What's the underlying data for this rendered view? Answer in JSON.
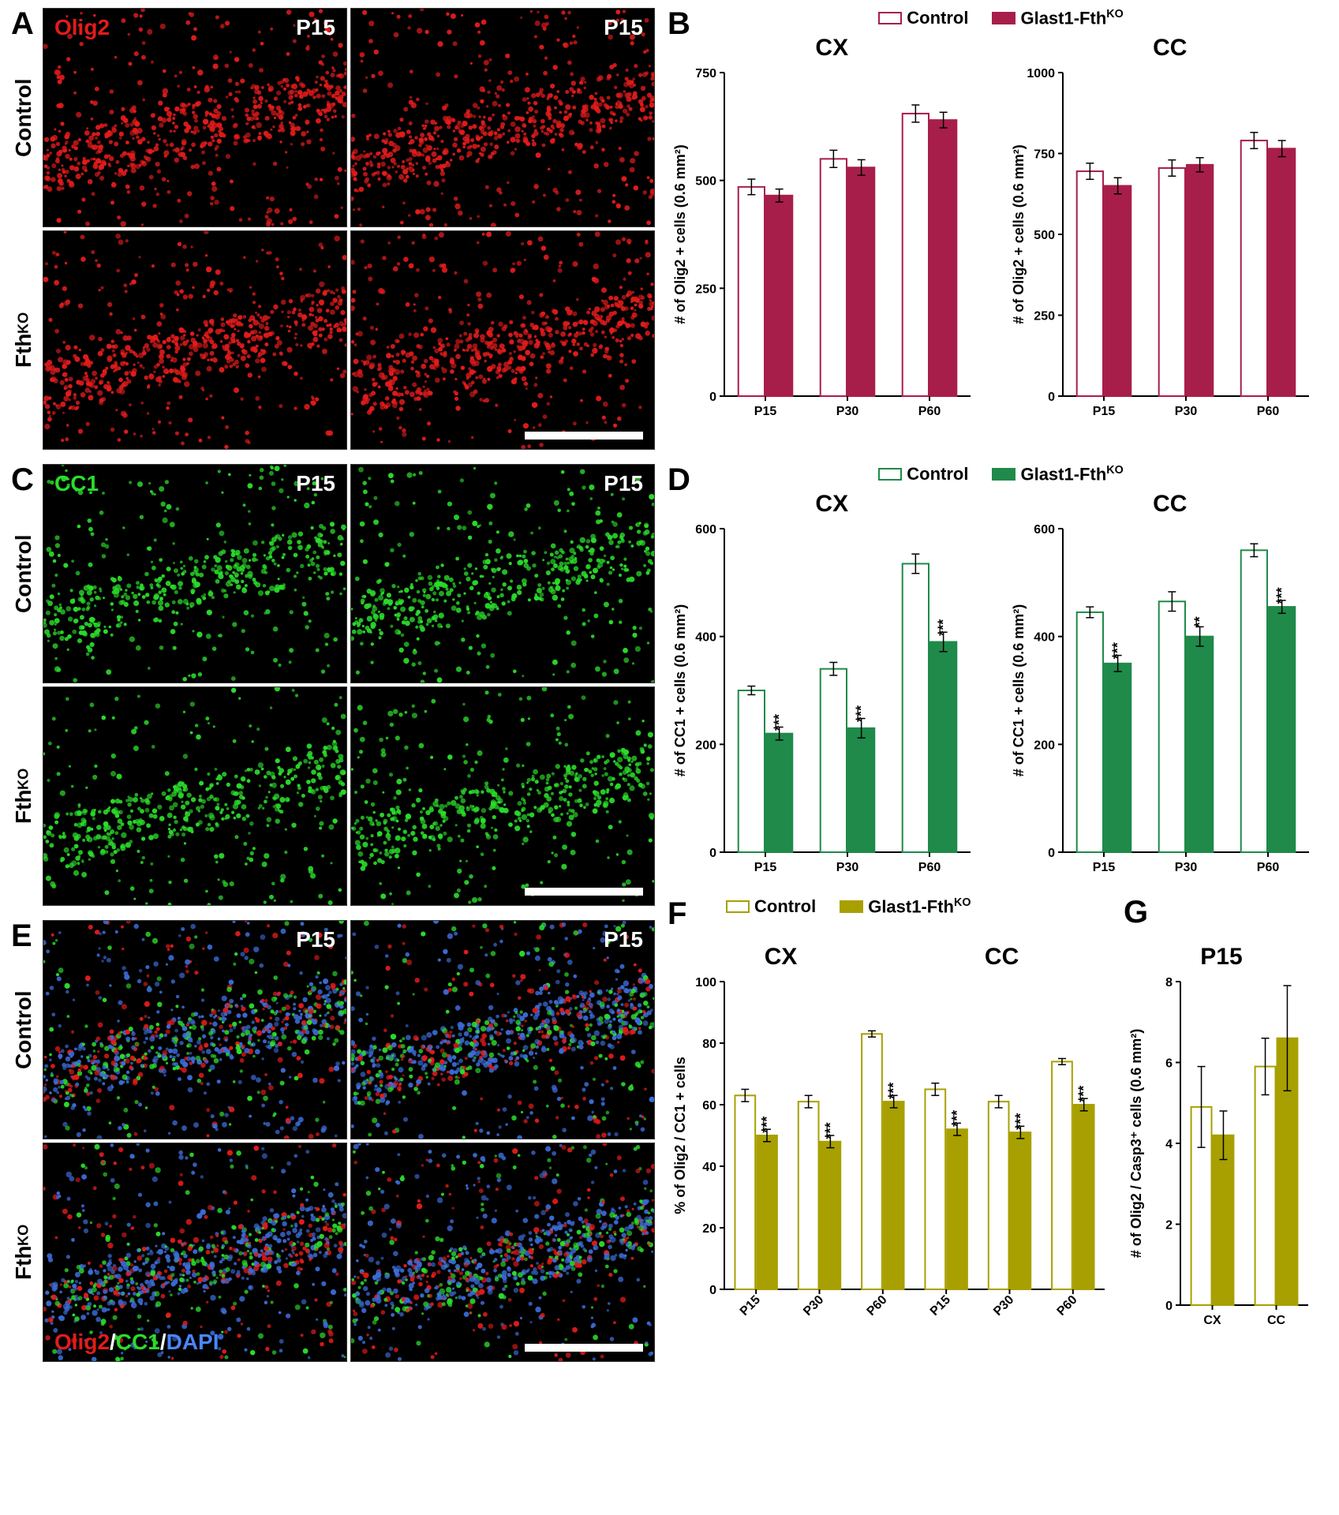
{
  "colors": {
    "olig2_red": "#e31b1b",
    "cc1_green": "#2bdc2b",
    "dapi_blue": "#2a5fff",
    "white": "#ffffff",
    "black": "#000000",
    "bar_control_outline_B": "#a81e4a",
    "bar_ko_fill_B": "#a81e4a",
    "bar_control_outline_D": "#1f8a4a",
    "bar_ko_fill_D": "#1f8a4a",
    "bar_control_outline_F": "#a8a000",
    "bar_ko_fill_F": "#a8a000",
    "axis": "#000000"
  },
  "timepoint_label": "P15",
  "row_labels": {
    "control": "Control",
    "ko": "Fth",
    "ko_sup": "KO"
  },
  "markers": {
    "A": {
      "text": "Olig2",
      "color": "#e31b1b"
    },
    "C": {
      "text": "CC1",
      "color": "#2bdc2b"
    },
    "E_parts": [
      {
        "text": "Olig2",
        "color": "#e31b1b"
      },
      {
        "text": "/",
        "color": "#ffffff"
      },
      {
        "text": "CC1",
        "color": "#2bdc2b"
      },
      {
        "text": "/",
        "color": "#ffffff"
      },
      {
        "text": "DAPI",
        "color": "#4a86ff"
      }
    ]
  },
  "legend_groups": {
    "B": {
      "control": "Control",
      "ko": "Glast1-Fth",
      "ko_sup": "KO"
    },
    "D": {
      "control": "Control",
      "ko": "Glast1-Fth",
      "ko_sup": "KO"
    },
    "F": {
      "control": "Control",
      "ko": "Glast1-Fth",
      "ko_sup": "KO"
    }
  },
  "panel_letters": {
    "A": "A",
    "B": "B",
    "C": "C",
    "D": "D",
    "E": "E",
    "F": "F",
    "G": "G"
  },
  "chart_common": {
    "x_categories_3": [
      "P15",
      "P30",
      "P60"
    ],
    "x_categories_6": [
      "P15",
      "P30",
      "P60",
      "P15",
      "P30",
      "P60"
    ],
    "x_categories_G": [
      "CX",
      "CC"
    ],
    "axis_fontsize": 18,
    "tick_fontsize": 16,
    "bar_group_gap": 0.35
  },
  "charts": {
    "B_CX": {
      "title": "CX",
      "ylabel": "# of Olig2 + cells (0.6 mm²)",
      "ylim": [
        0,
        750
      ],
      "ytick_step": 250,
      "control": [
        485,
        550,
        655
      ],
      "control_err": [
        18,
        20,
        20
      ],
      "ko": [
        465,
        530,
        640
      ],
      "ko_err": [
        15,
        18,
        18
      ],
      "sig": [
        "",
        "",
        ""
      ]
    },
    "B_CC": {
      "title": "CC",
      "ylabel": "# of Olig2 + cells (0.6 mm²)",
      "ylim": [
        0,
        1000
      ],
      "ytick_step": 250,
      "control": [
        695,
        705,
        790
      ],
      "control_err": [
        25,
        25,
        25
      ],
      "ko": [
        650,
        715,
        765
      ],
      "ko_err": [
        25,
        22,
        25
      ],
      "sig": [
        "",
        "",
        ""
      ]
    },
    "D_CX": {
      "title": "CX",
      "ylabel": "# of CC1 + cells (0.6 mm²)",
      "ylim": [
        0,
        600
      ],
      "ytick_step": 200,
      "control": [
        300,
        340,
        535
      ],
      "control_err": [
        8,
        12,
        18
      ],
      "ko": [
        220,
        230,
        390
      ],
      "ko_err": [
        12,
        18,
        18
      ],
      "sig": [
        "***",
        "***",
        "***"
      ]
    },
    "D_CC": {
      "title": "CC",
      "ylabel": "# of CC1 + cells (0.6 mm²)",
      "ylim": [
        0,
        600
      ],
      "ytick_step": 200,
      "control": [
        445,
        465,
        560
      ],
      "control_err": [
        10,
        18,
        12
      ],
      "ko": [
        350,
        400,
        455
      ],
      "ko_err": [
        15,
        18,
        12
      ],
      "sig": [
        "***",
        "**",
        "***"
      ]
    },
    "F": {
      "title_left": "CX",
      "title_right": "CC",
      "ylabel": "% of Olig2 / CC1 + cells",
      "ylim": [
        0,
        100
      ],
      "ytick_step": 20,
      "control": [
        63,
        61,
        83,
        65,
        61,
        74
      ],
      "control_err": [
        2,
        2,
        1,
        2,
        2,
        1
      ],
      "ko": [
        50,
        48,
        61,
        52,
        51,
        60
      ],
      "ko_err": [
        2,
        2,
        2,
        2,
        2,
        2
      ],
      "sig": [
        "***",
        "***",
        "***",
        "***",
        "***",
        "***"
      ]
    },
    "G": {
      "title": "P15",
      "ylabel": "# of Olig2 / Casp3⁺ cells (0.6 mm²)",
      "ylim": [
        0,
        8
      ],
      "ytick_step": 2,
      "control": [
        4.9,
        5.9
      ],
      "control_err": [
        1.0,
        0.7
      ],
      "ko": [
        4.2,
        6.6
      ],
      "ko_err": [
        0.6,
        1.3
      ],
      "sig": [
        "",
        ""
      ]
    }
  },
  "style": {
    "panel_letter_fontsize": 40,
    "micro_label_fontsize": 28,
    "legend_fontsize": 22,
    "chart_title_fontsize": 30,
    "bar_outline_width": 2,
    "error_cap_width": 8
  }
}
